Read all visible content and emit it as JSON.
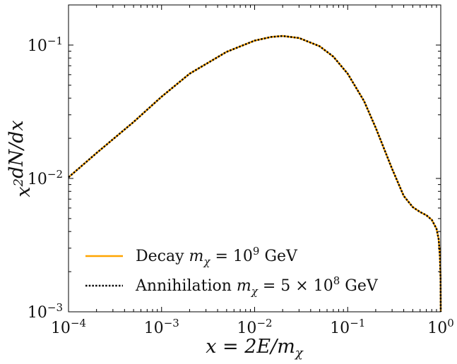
{
  "chart_data": {
    "type": "line",
    "xscale": "log",
    "yscale": "log",
    "xlim": [
      0.0001,
      1
    ],
    "ylim": [
      0.001,
      0.2
    ],
    "xlabel": "x = 2E/m_χ",
    "ylabel": "x²dN/dx",
    "x_ticks": [
      {
        "value": 0.0001,
        "label": "10⁻⁴"
      },
      {
        "value": 0.001,
        "label": "10⁻³"
      },
      {
        "value": 0.01,
        "label": "10⁻²"
      },
      {
        "value": 0.1,
        "label": "10⁻¹"
      },
      {
        "value": 1,
        "label": "10⁰"
      }
    ],
    "y_ticks": [
      {
        "value": 0.001,
        "label": "10⁻³"
      },
      {
        "value": 0.01,
        "label": "10⁻²"
      },
      {
        "value": 0.1,
        "label": "10⁻¹"
      }
    ],
    "legend_position": "lower-left",
    "grid": false,
    "series": [
      {
        "name": "Decay m_χ = 10⁹ GeV",
        "color": "#ffa500",
        "style": "solid",
        "x": [
          0.0001,
          0.0002,
          0.0005,
          0.001,
          0.002,
          0.005,
          0.01,
          0.015,
          0.02,
          0.03,
          0.05,
          0.07,
          0.1,
          0.15,
          0.2,
          0.3,
          0.4,
          0.5,
          0.6,
          0.7,
          0.8,
          0.9,
          0.95,
          0.98,
          0.995,
          1.0
        ],
        "y": [
          0.0102,
          0.0155,
          0.0265,
          0.041,
          0.061,
          0.089,
          0.108,
          0.115,
          0.117,
          0.113,
          0.098,
          0.082,
          0.061,
          0.038,
          0.024,
          0.0118,
          0.0074,
          0.0061,
          0.0056,
          0.0053,
          0.0049,
          0.0042,
          0.0035,
          0.0026,
          0.0018,
          0.001
        ]
      },
      {
        "name": "Annihilation m_χ = 5 × 10⁸ GeV",
        "color": "#000000",
        "style": "dotted",
        "x": [
          0.0001,
          0.0002,
          0.0005,
          0.001,
          0.002,
          0.005,
          0.01,
          0.015,
          0.02,
          0.03,
          0.05,
          0.07,
          0.1,
          0.15,
          0.2,
          0.3,
          0.4,
          0.5,
          0.6,
          0.7,
          0.8,
          0.9,
          0.95,
          0.98,
          0.995,
          1.0
        ],
        "y": [
          0.0102,
          0.0155,
          0.0265,
          0.041,
          0.061,
          0.089,
          0.108,
          0.115,
          0.117,
          0.113,
          0.098,
          0.082,
          0.061,
          0.038,
          0.024,
          0.0118,
          0.0074,
          0.0061,
          0.0056,
          0.0053,
          0.0049,
          0.0042,
          0.0035,
          0.0026,
          0.0018,
          0.001
        ]
      }
    ],
    "legend": [
      {
        "prefix": "Decay ",
        "math": "m",
        "sub": "χ",
        "rest": " = 10",
        "sup": "9",
        "suffix": " GeV"
      },
      {
        "prefix": "Annihilation ",
        "math": "m",
        "sub": "χ",
        "rest": " = 5 × 10",
        "sup": "8",
        "suffix": " GeV"
      }
    ]
  }
}
